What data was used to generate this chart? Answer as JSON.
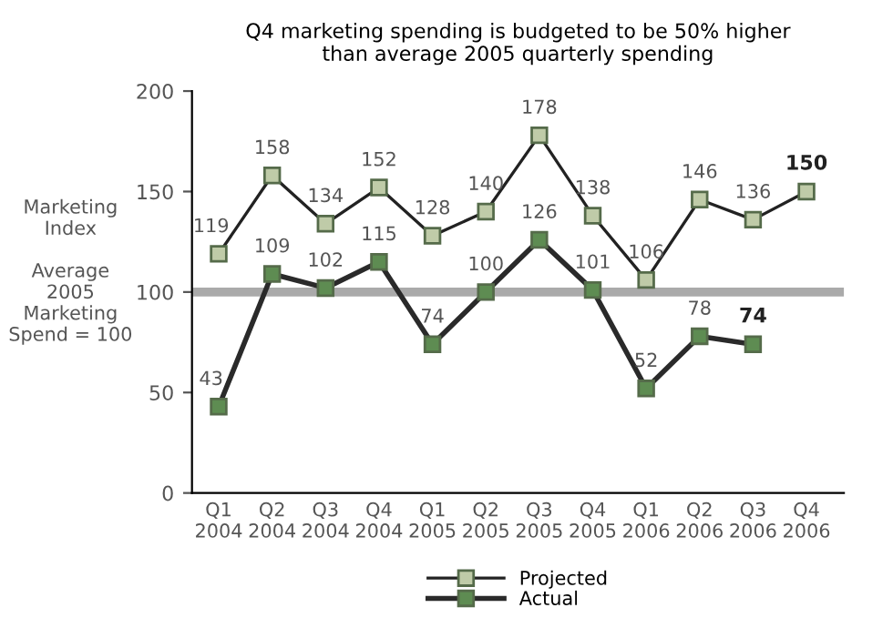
{
  "chart_data": {
    "type": "line",
    "title": "Q4 marketing spending is budgeted to be 50% higher\nthan average 2005 quarterly spending",
    "ylabel": "Marketing\nIndex\n\nAverage\n2005\nMarketing\nSpend = 100",
    "categories": [
      "Q1\n2004",
      "Q2\n2004",
      "Q3\n2004",
      "Q4\n2004",
      "Q1\n2005",
      "Q2\n2005",
      "Q3\n2005",
      "Q4\n2005",
      "Q1\n2006",
      "Q2\n2006",
      "Q3\n2006",
      "Q4\n2006"
    ],
    "series": [
      {
        "name": "Projected",
        "color": "#bfcba8",
        "values": [
          119,
          158,
          134,
          152,
          128,
          140,
          178,
          138,
          106,
          146,
          136,
          150
        ]
      },
      {
        "name": "Actual",
        "color": "#5e8c52",
        "values": [
          43,
          109,
          102,
          115,
          74,
          100,
          126,
          101,
          52,
          78,
          74,
          null
        ]
      }
    ],
    "ylim": [
      0,
      200
    ],
    "yticks": [
      0,
      50,
      100,
      150,
      200
    ],
    "ref_lines": [
      {
        "axis": "y",
        "value": 100,
        "color": "#aaaaaa"
      }
    ],
    "data_labels": true,
    "marker": "square",
    "grid": false,
    "legend": "bottom"
  }
}
